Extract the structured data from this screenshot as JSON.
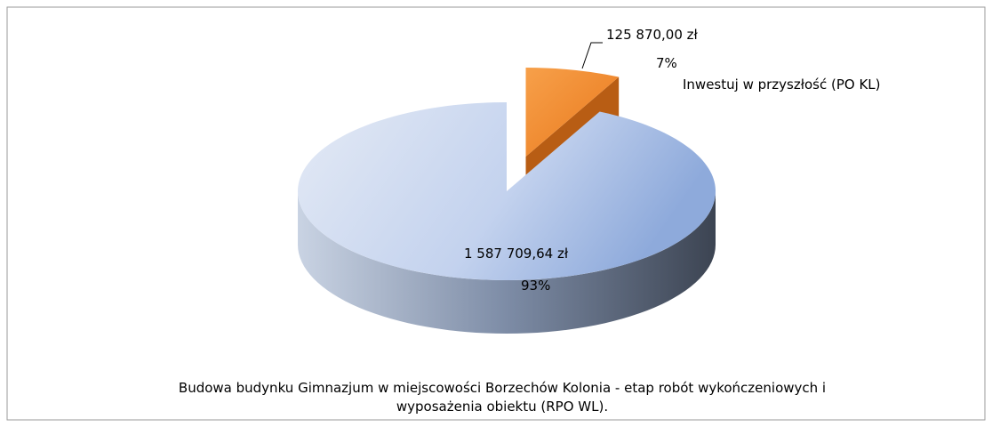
{
  "chart_data": {
    "type": "pie",
    "categories": [
      "Inwestuj w przyszłość (PO KL)",
      "Budowa budynku Gimnazjum w miejscowości Borzechów Kolonia - etap robót wykończeniowych i wyposażenia obiektu (RPO WL)."
    ],
    "values": [
      125870.0,
      1587709.64
    ],
    "value_labels": [
      "125 870,00 zł",
      "1 587 709,64 zł"
    ],
    "percents": [
      7,
      93
    ],
    "percent_labels": [
      "7%",
      "93%"
    ],
    "colors": [
      "#f08a2a",
      "#b4c7e7"
    ],
    "exploded": [
      true,
      false
    ]
  }
}
